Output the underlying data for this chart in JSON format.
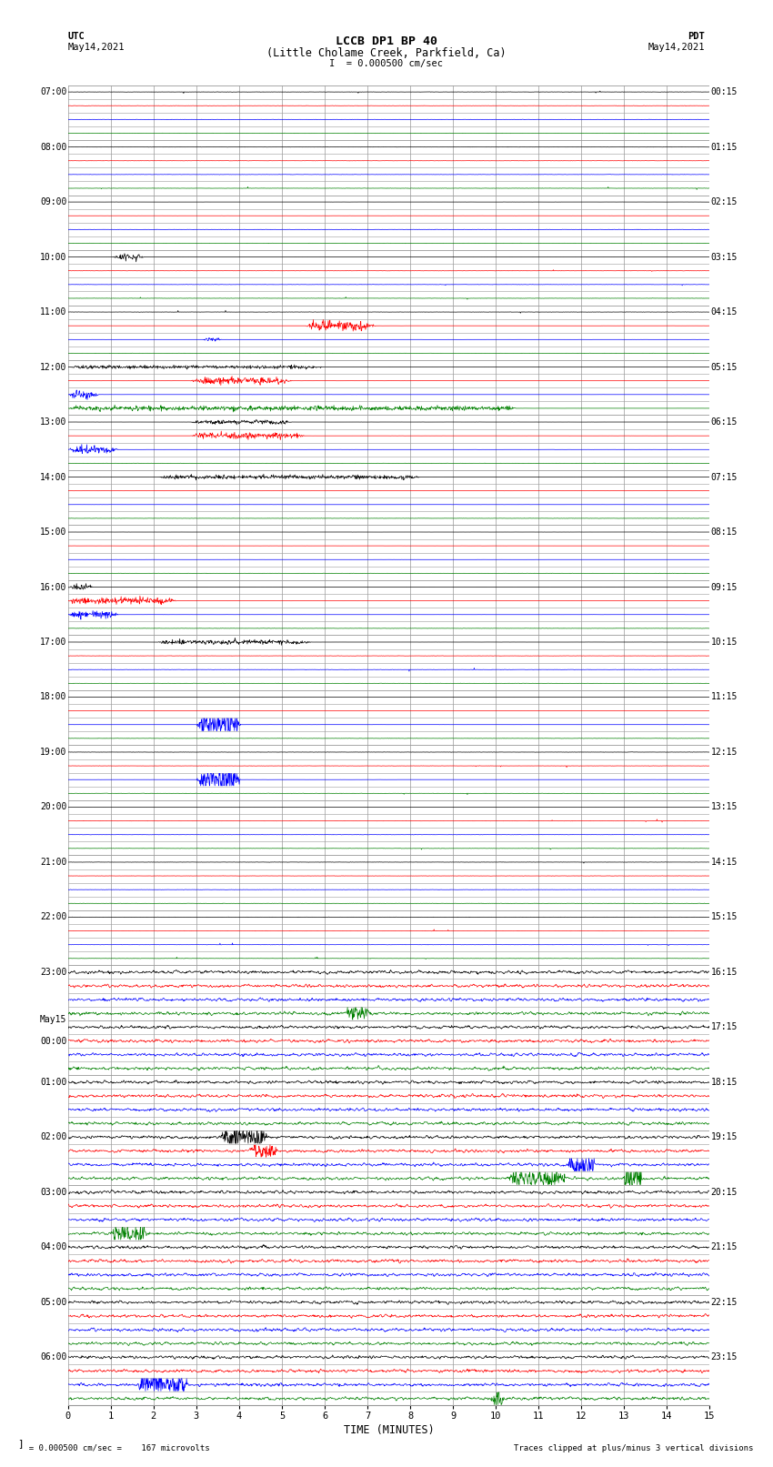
{
  "title_line1": "LCCB DP1 BP 40",
  "title_line2": "(Little Cholame Creek, Parkfield, Ca)",
  "title_line3": "I  = 0.000500 cm/sec",
  "utc_label": "UTC",
  "utc_date": "May14,2021",
  "pdt_label": "PDT",
  "pdt_date": "May14,2021",
  "xlabel": "TIME (MINUTES)",
  "footer_left": "  = 0.000500 cm/sec =    167 microvolts",
  "footer_right": "Traces clipped at plus/minus 3 vertical divisions",
  "bg_color": "#ffffff",
  "grid_color": "#999999",
  "trace_colors": [
    "black",
    "red",
    "blue",
    "green"
  ],
  "n_minutes": 15,
  "n_rows": 96,
  "row_labels_left": [
    "07:00",
    "",
    "",
    "",
    "08:00",
    "",
    "",
    "",
    "09:00",
    "",
    "",
    "",
    "10:00",
    "",
    "",
    "",
    "11:00",
    "",
    "",
    "",
    "12:00",
    "",
    "",
    "",
    "13:00",
    "",
    "",
    "",
    "14:00",
    "",
    "",
    "",
    "15:00",
    "",
    "",
    "",
    "16:00",
    "",
    "",
    "",
    "17:00",
    "",
    "",
    "",
    "18:00",
    "",
    "",
    "",
    "19:00",
    "",
    "",
    "",
    "20:00",
    "",
    "",
    "",
    "21:00",
    "",
    "",
    "",
    "22:00",
    "",
    "",
    "",
    "23:00",
    "",
    "",
    "",
    "May15",
    "00:00",
    "",
    "",
    "01:00",
    "",
    "",
    "",
    "02:00",
    "",
    "",
    "",
    "03:00",
    "",
    "",
    "",
    "04:00",
    "",
    "",
    "",
    "05:00",
    "",
    "",
    "",
    "06:00",
    "",
    "",
    ""
  ],
  "row_labels_right": [
    "00:15",
    "",
    "",
    "",
    "01:15",
    "",
    "",
    "",
    "02:15",
    "",
    "",
    "",
    "03:15",
    "",
    "",
    "",
    "04:15",
    "",
    "",
    "",
    "05:15",
    "",
    "",
    "",
    "06:15",
    "",
    "",
    "",
    "07:15",
    "",
    "",
    "",
    "08:15",
    "",
    "",
    "",
    "09:15",
    "",
    "",
    "",
    "10:15",
    "",
    "",
    "",
    "11:15",
    "",
    "",
    "",
    "12:15",
    "",
    "",
    "",
    "13:15",
    "",
    "",
    "",
    "14:15",
    "",
    "",
    "",
    "15:15",
    "",
    "",
    "",
    "16:15",
    "",
    "",
    "",
    "17:15",
    "",
    "",
    "",
    "18:15",
    "",
    "",
    "",
    "19:15",
    "",
    "",
    "",
    "20:15",
    "",
    "",
    "",
    "21:15",
    "",
    "",
    "",
    "22:15",
    "",
    "",
    "",
    "23:15",
    "",
    "",
    ""
  ]
}
